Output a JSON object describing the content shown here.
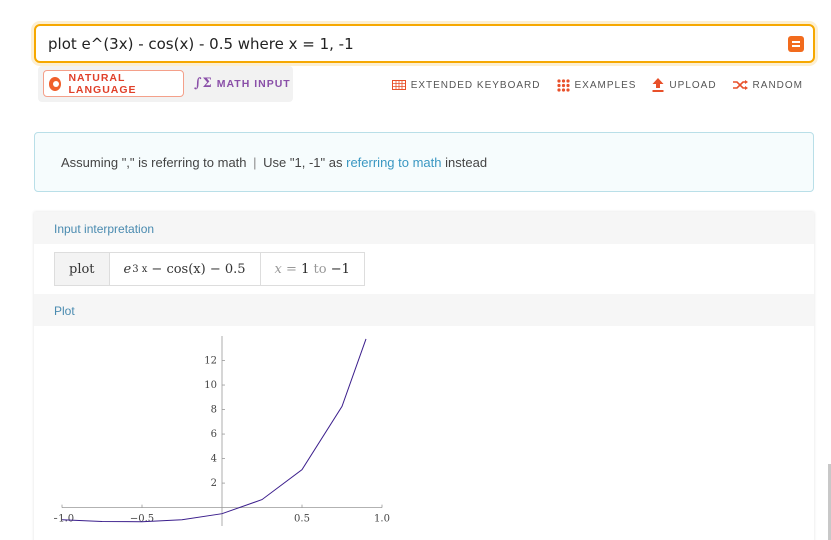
{
  "search": {
    "query": "plot e^(3x) - cos(x) - 0.5 where x = 1, -1"
  },
  "modes": {
    "natural_language": "NATURAL LANGUAGE",
    "math_input": "MATH INPUT"
  },
  "toolbar": {
    "keyboard": "EXTENDED KEYBOARD",
    "examples": "EXAMPLES",
    "upload": "UPLOAD",
    "random": "RANDOM"
  },
  "assumption": {
    "prefix": "Assuming \",\" is referring to math",
    "separator": "|",
    "use_text": "Use \"1, -1\" as",
    "link": "referring to math",
    "suffix": "instead"
  },
  "input_interpretation": {
    "title": "Input interpretation",
    "plot_word": "plot",
    "base": "e",
    "exponent": "3 x",
    "rest": "− cos(x) − 0.5",
    "var": "x",
    "eq": "=",
    "from": "1",
    "to_word": "to",
    "to": "−1"
  },
  "plot_pod": {
    "title": "Plot"
  },
  "colors": {
    "accent": "#f6a800",
    "curve": "#3b1e8c",
    "link": "#3a97c2"
  },
  "chart_data": {
    "type": "line",
    "title": "",
    "xlabel": "",
    "ylabel": "",
    "function": "e^(3x) - cos(x) - 0.5",
    "xlim": [
      -1.0,
      1.0
    ],
    "ylim": [
      -1.5,
      14
    ],
    "x_ticks": [
      -1.0,
      -0.5,
      0.5,
      1.0
    ],
    "x_tick_labels": [
      "−1.0",
      "−0.5",
      "0.5",
      "1.0"
    ],
    "y_ticks": [
      2,
      4,
      6,
      8,
      10,
      12
    ],
    "y_tick_labels": [
      "2",
      "4",
      "6",
      "8",
      "10",
      "12"
    ],
    "series": [
      {
        "x": [
          -1.0,
          -0.75,
          -0.5,
          -0.25,
          0.0,
          0.25,
          0.5,
          0.75,
          0.9
        ],
        "y": [
          -0.99,
          -1.13,
          -1.15,
          -0.99,
          -0.5,
          0.65,
          3.1,
          8.26,
          13.76
        ]
      }
    ]
  }
}
